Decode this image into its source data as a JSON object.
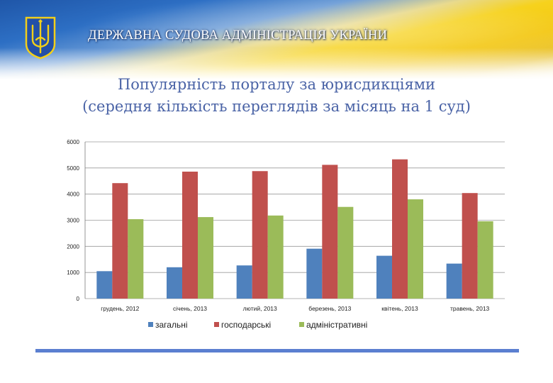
{
  "header": {
    "organization": "ДЕРЖАВНА СУДОВА АДМІНІСТРАЦІЯ УКРАЇНИ",
    "emblem_icon": "trident-icon",
    "colors": {
      "blue": "#2a63b8",
      "yellow": "#f5d10f"
    }
  },
  "title": {
    "line1": "Популярність порталу за юрисдикціями",
    "line2": "(середня кількість переглядів за місяць на 1 суд)"
  },
  "chart_data": {
    "type": "bar",
    "title": "Популярність порталу за юрисдикціями (середня кількість переглядів за місяць на 1 суд)",
    "categories": [
      "грудень, 2012",
      "січень, 2013",
      "лютий, 2013",
      "березень, 2013",
      "квітень, 2013",
      "травень, 2013"
    ],
    "series": [
      {
        "name": "загальні",
        "color": "#4f81bd",
        "values": [
          1050,
          1200,
          1270,
          1910,
          1640,
          1340
        ]
      },
      {
        "name": "господарські",
        "color": "#c0504d",
        "values": [
          4420,
          4860,
          4880,
          5120,
          5330,
          4040
        ]
      },
      {
        "name": "адміністративні",
        "color": "#9bbb59",
        "values": [
          3040,
          3120,
          3180,
          3510,
          3800,
          2960
        ]
      }
    ],
    "ylim": [
      0,
      6000
    ],
    "yticks": [
      "0",
      "1000",
      "2000",
      "3000",
      "4000",
      "5000",
      "6000"
    ],
    "xlabel": "",
    "ylabel": "",
    "grid": true,
    "legend_position": "bottom"
  }
}
